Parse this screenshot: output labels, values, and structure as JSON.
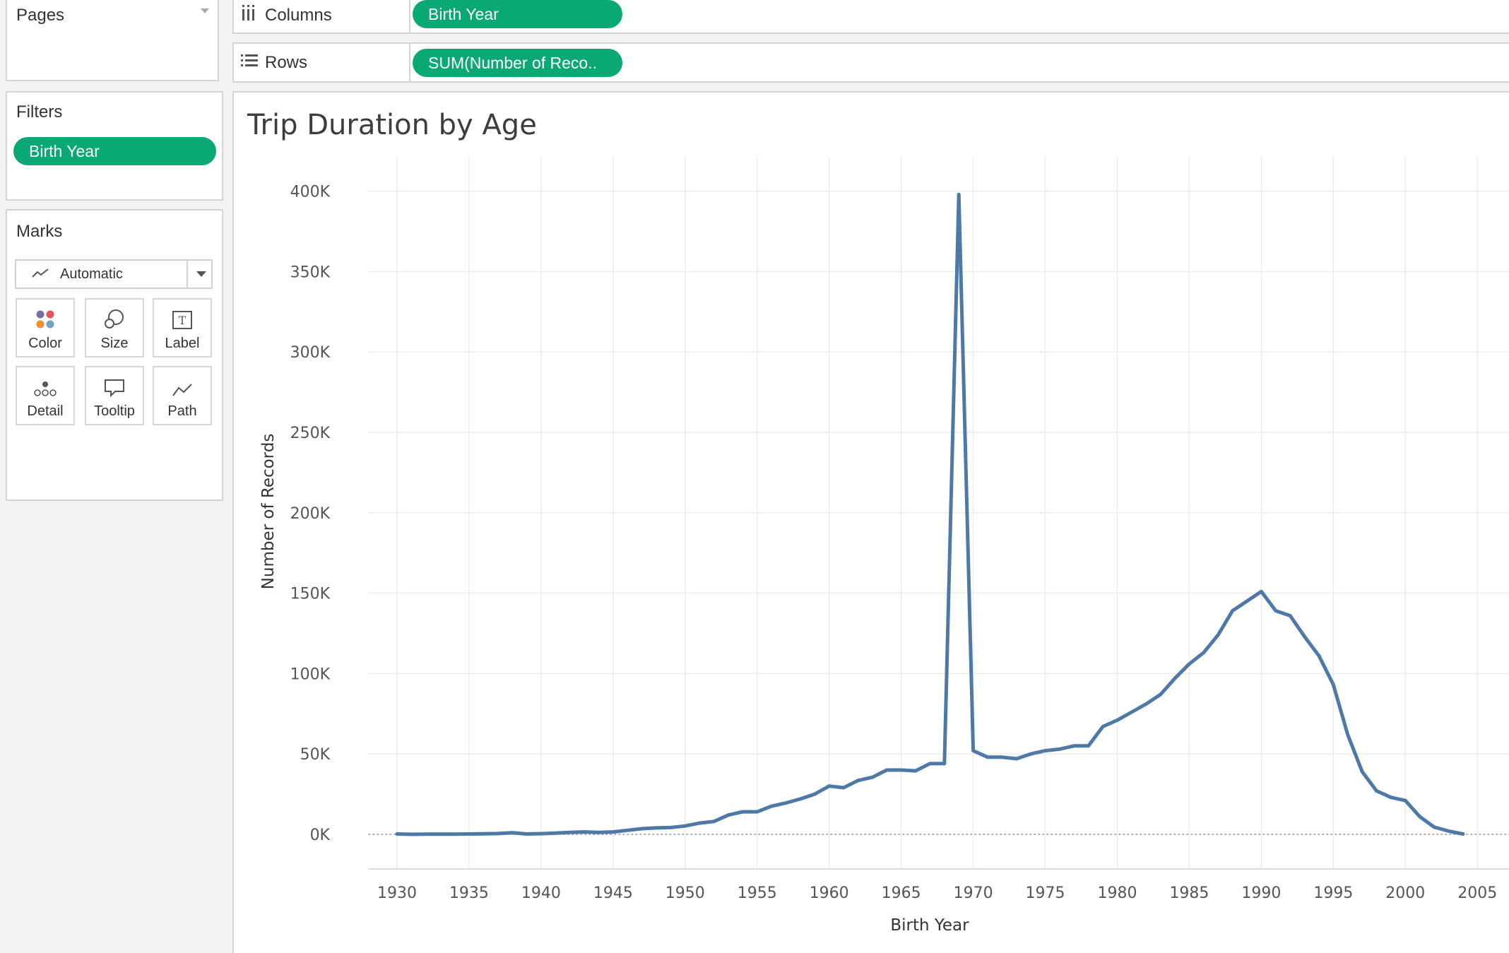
{
  "pages": {
    "title": "Pages"
  },
  "filters": {
    "title": "Filters",
    "pill": "Birth Year"
  },
  "marks": {
    "title": "Marks",
    "type": "Automatic",
    "buttons": [
      {
        "label": "Color",
        "icon": "color-icon"
      },
      {
        "label": "Size",
        "icon": "size-icon"
      },
      {
        "label": "Label",
        "icon": "label-icon"
      },
      {
        "label": "Detail",
        "icon": "detail-icon"
      },
      {
        "label": "Tooltip",
        "icon": "tooltip-icon"
      },
      {
        "label": "Path",
        "icon": "path-icon"
      }
    ]
  },
  "shelves": {
    "columns": {
      "label": "Columns",
      "pill": "Birth Year",
      "icon": "columns-icon"
    },
    "rows": {
      "label": "Rows",
      "pill": "SUM(Number of Reco..",
      "icon": "rows-icon"
    }
  },
  "colors": {
    "pill": "#09a875",
    "line": "#4e79a7",
    "grid": "#ececec"
  },
  "chart_data": {
    "type": "line",
    "title": "Trip Duration by Age",
    "xlabel": "Birth Year",
    "ylabel": "Number of Records",
    "xlim": [
      1928,
      2006
    ],
    "ylim": [
      -20000,
      415000
    ],
    "xticks": [
      1930,
      1935,
      1940,
      1945,
      1950,
      1955,
      1960,
      1965,
      1970,
      1975,
      1980,
      1985,
      1990,
      1995,
      2000,
      2005
    ],
    "xtick_labels": [
      "1930",
      "1935",
      "1940",
      "1945",
      "1950",
      "1955",
      "1960",
      "1965",
      "1970",
      "1975",
      "1980",
      "1985",
      "1990",
      "1995",
      "2000",
      "2005"
    ],
    "yticks": [
      0,
      50000,
      100000,
      150000,
      200000,
      250000,
      300000,
      350000,
      400000
    ],
    "ytick_labels": [
      "0K",
      "50K",
      "100K",
      "150K",
      "200K",
      "250K",
      "300K",
      "350K",
      "400K"
    ],
    "grid": true,
    "series": [
      {
        "x": [
          1930,
          1931,
          1932,
          1933,
          1934,
          1935,
          1936,
          1937,
          1938,
          1939,
          1940,
          1941,
          1942,
          1943,
          1944,
          1945,
          1946,
          1947,
          1948,
          1949,
          1950,
          1951,
          1952,
          1953,
          1954,
          1955,
          1956,
          1957,
          1958,
          1959,
          1960,
          1961,
          1962,
          1963,
          1964,
          1965,
          1966,
          1967,
          1968,
          1969,
          1970,
          1971,
          1972,
          1973,
          1974,
          1975,
          1976,
          1977,
          1978,
          1979,
          1980,
          1981,
          1982,
          1983,
          1984,
          1985,
          1986,
          1987,
          1988,
          1989,
          1990,
          1991,
          1992,
          1993,
          1994,
          1995,
          1996,
          1997,
          1998,
          1999,
          2000,
          2001,
          2002,
          2003,
          2004
        ],
        "values": [
          200,
          0,
          100,
          100,
          100,
          200,
          300,
          500,
          1000,
          200,
          400,
          800,
          1200,
          1500,
          1200,
          1500,
          2500,
          3500,
          4000,
          4200,
          5200,
          7000,
          8000,
          12000,
          14000,
          14000,
          17500,
          19500,
          22000,
          25000,
          30000,
          29000,
          33500,
          35500,
          40000,
          40000,
          39500,
          44000,
          44000,
          398000,
          52000,
          48000,
          48000,
          47000,
          50000,
          52000,
          53000,
          55000,
          55000,
          67000,
          71000,
          76000,
          81000,
          87000,
          97000,
          106000,
          113000,
          124000,
          139000,
          145000,
          151000,
          139000,
          136000,
          123000,
          111000,
          93000,
          62000,
          39000,
          27000,
          23000,
          21000,
          11000,
          4500,
          2000,
          200
        ]
      }
    ]
  }
}
